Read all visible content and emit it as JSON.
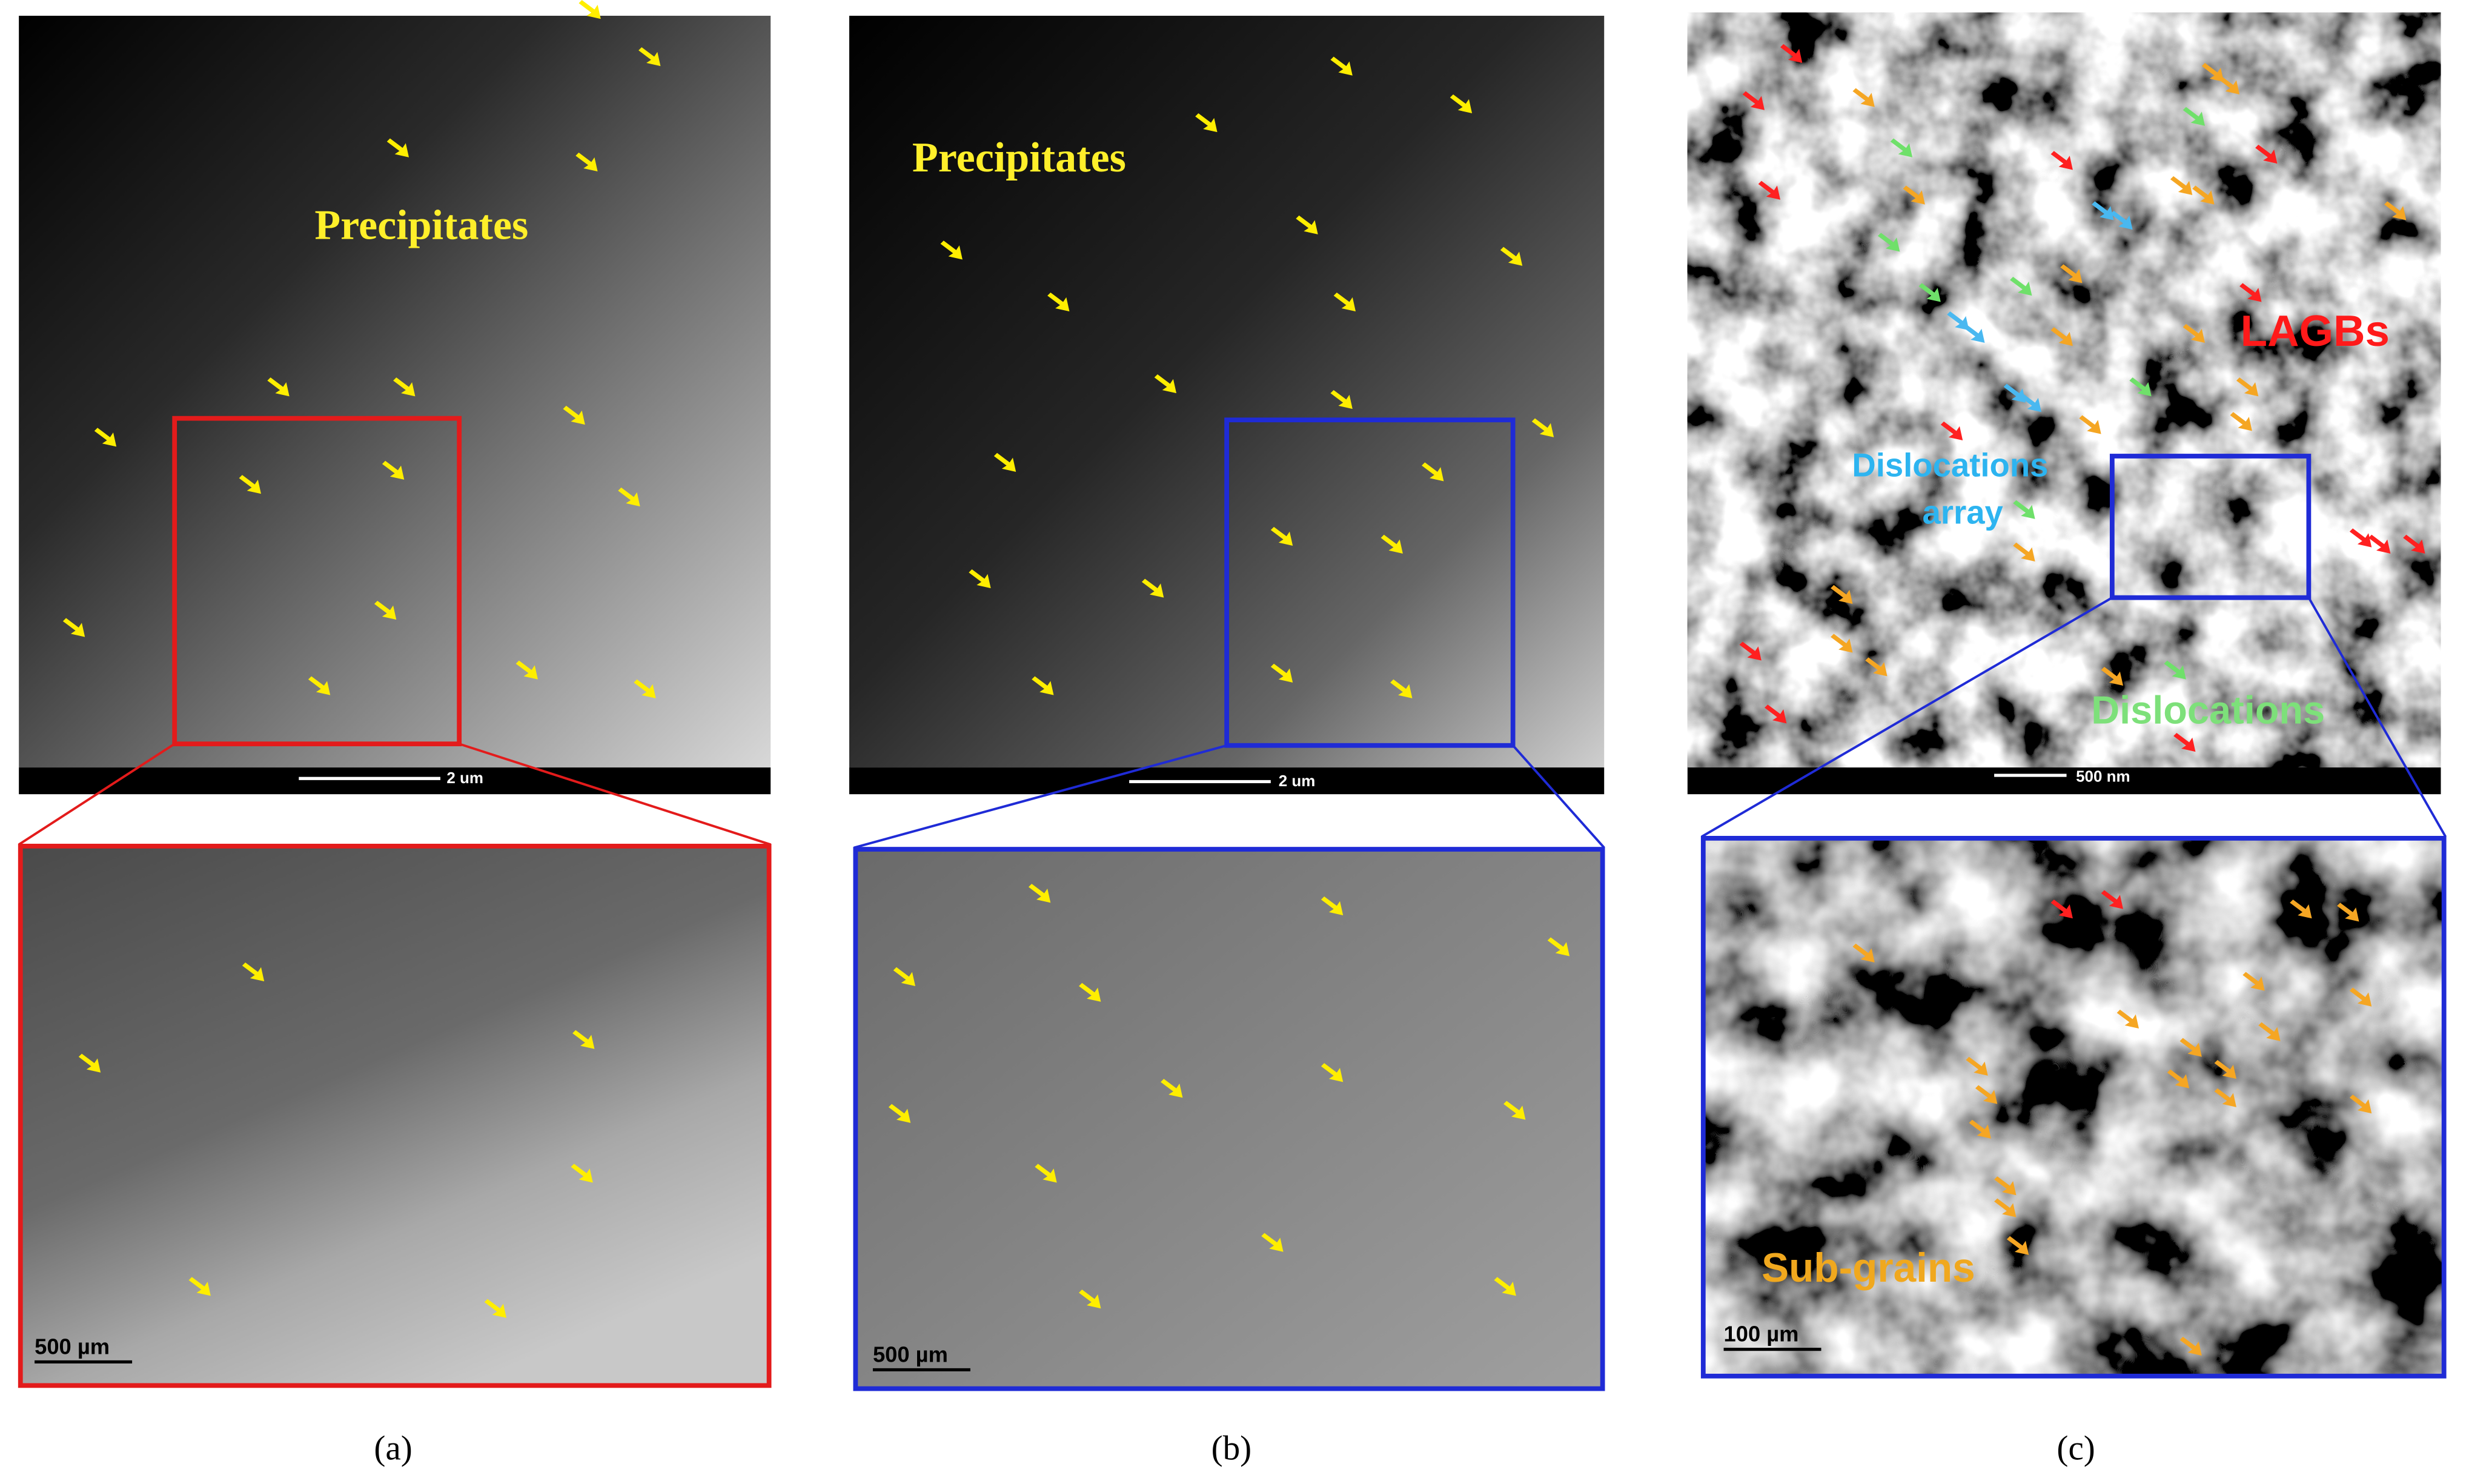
{
  "panels": [
    {
      "label": "(a)",
      "annotation": "Precipitates",
      "scale_bar": "2 um",
      "inset_scale_bar": "500 µm"
    },
    {
      "label": "(b)",
      "annotation": "Precipitates",
      "scale_bar": "2 um",
      "inset_scale_bar": "500 µm"
    },
    {
      "label": "(c)",
      "annotations": {
        "lagbs": "LAGBs",
        "dislocations_array": [
          "Dislocations",
          "array"
        ],
        "dislocations": "Dislocations",
        "sub_grains": "Sub-grains"
      },
      "scale_bar": "500 nm",
      "inset_scale_bar": "100 µm"
    }
  ]
}
